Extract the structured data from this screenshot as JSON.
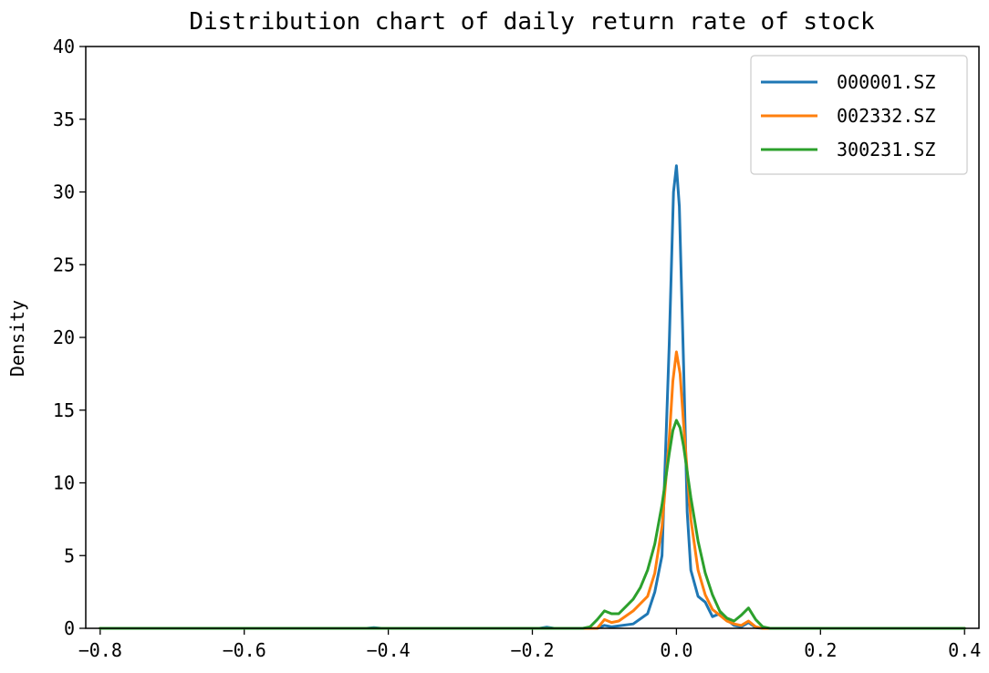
{
  "chart_data": {
    "type": "line",
    "title": "Distribution chart of daily return rate of stock",
    "xlabel": "",
    "ylabel": "Density",
    "xlim": [
      -0.82,
      0.42
    ],
    "ylim": [
      0,
      40
    ],
    "x_ticks": [
      -0.8,
      -0.6,
      -0.4,
      -0.2,
      0.0,
      0.2,
      0.4
    ],
    "x_tick_labels": [
      "−0.8",
      "−0.6",
      "−0.4",
      "−0.2",
      "0.0",
      "0.2",
      "0.4"
    ],
    "y_ticks": [
      0,
      5,
      10,
      15,
      20,
      25,
      30,
      35,
      40
    ],
    "y_tick_labels": [
      "0",
      "5",
      "10",
      "15",
      "20",
      "25",
      "30",
      "35",
      "40"
    ],
    "grid": false,
    "legend_position": "top-right",
    "series": [
      {
        "name": "000001.SZ",
        "color": "#1f77b4",
        "points": [
          [
            -0.8,
            0
          ],
          [
            -0.43,
            0
          ],
          [
            -0.42,
            0.05
          ],
          [
            -0.41,
            0
          ],
          [
            -0.19,
            0
          ],
          [
            -0.18,
            0.08
          ],
          [
            -0.17,
            0
          ],
          [
            -0.11,
            0
          ],
          [
            -0.1,
            0.2
          ],
          [
            -0.09,
            0.1
          ],
          [
            -0.06,
            0.3
          ],
          [
            -0.04,
            1.0
          ],
          [
            -0.03,
            2.5
          ],
          [
            -0.02,
            5.0
          ],
          [
            -0.01,
            19.5
          ],
          [
            -0.004,
            30.0
          ],
          [
            0.0,
            31.8
          ],
          [
            0.004,
            29.0
          ],
          [
            0.01,
            18.0
          ],
          [
            0.015,
            8.0
          ],
          [
            0.02,
            4.0
          ],
          [
            0.03,
            2.2
          ],
          [
            0.04,
            1.8
          ],
          [
            0.05,
            0.8
          ],
          [
            0.06,
            1.0
          ],
          [
            0.07,
            0.6
          ],
          [
            0.08,
            0.2
          ],
          [
            0.09,
            0.1
          ],
          [
            0.1,
            0.4
          ],
          [
            0.11,
            0.05
          ],
          [
            0.12,
            0
          ],
          [
            0.4,
            0
          ]
        ]
      },
      {
        "name": "002332.SZ",
        "color": "#ff7f0e",
        "points": [
          [
            -0.8,
            0
          ],
          [
            -0.11,
            0
          ],
          [
            -0.1,
            0.6
          ],
          [
            -0.09,
            0.4
          ],
          [
            -0.08,
            0.5
          ],
          [
            -0.06,
            1.2
          ],
          [
            -0.04,
            2.2
          ],
          [
            -0.03,
            3.8
          ],
          [
            -0.02,
            7.0
          ],
          [
            -0.01,
            13.0
          ],
          [
            -0.005,
            17.0
          ],
          [
            0.0,
            19.0
          ],
          [
            0.005,
            17.5
          ],
          [
            0.01,
            14.0
          ],
          [
            0.02,
            7.5
          ],
          [
            0.03,
            4.0
          ],
          [
            0.04,
            2.3
          ],
          [
            0.05,
            1.3
          ],
          [
            0.06,
            0.9
          ],
          [
            0.07,
            0.5
          ],
          [
            0.08,
            0.3
          ],
          [
            0.09,
            0.2
          ],
          [
            0.1,
            0.5
          ],
          [
            0.11,
            0.1
          ],
          [
            0.12,
            0
          ],
          [
            0.4,
            0
          ]
        ]
      },
      {
        "name": "300231.SZ",
        "color": "#2ca02c",
        "points": [
          [
            -0.8,
            0
          ],
          [
            -0.13,
            0
          ],
          [
            -0.12,
            0.1
          ],
          [
            -0.11,
            0.6
          ],
          [
            -0.1,
            1.2
          ],
          [
            -0.09,
            1.0
          ],
          [
            -0.08,
            1.0
          ],
          [
            -0.07,
            1.5
          ],
          [
            -0.06,
            2.0
          ],
          [
            -0.05,
            2.8
          ],
          [
            -0.04,
            4.0
          ],
          [
            -0.03,
            5.8
          ],
          [
            -0.02,
            8.5
          ],
          [
            -0.01,
            12.0
          ],
          [
            -0.005,
            13.6
          ],
          [
            0.0,
            14.3
          ],
          [
            0.005,
            13.8
          ],
          [
            0.01,
            12.5
          ],
          [
            0.02,
            9.0
          ],
          [
            0.03,
            6.0
          ],
          [
            0.04,
            3.8
          ],
          [
            0.05,
            2.3
          ],
          [
            0.06,
            1.2
          ],
          [
            0.07,
            0.7
          ],
          [
            0.08,
            0.5
          ],
          [
            0.09,
            0.9
          ],
          [
            0.1,
            1.4
          ],
          [
            0.11,
            0.6
          ],
          [
            0.12,
            0.1
          ],
          [
            0.13,
            0
          ],
          [
            0.4,
            0
          ]
        ]
      }
    ]
  }
}
